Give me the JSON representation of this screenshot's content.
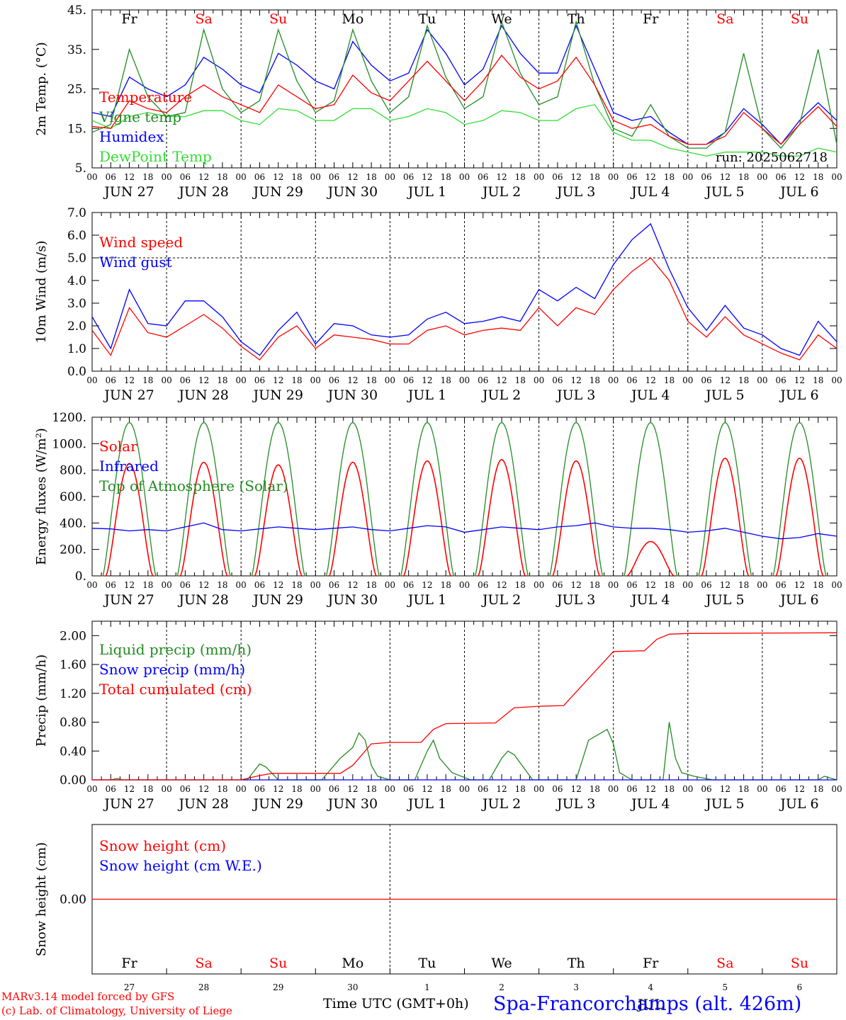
{
  "colors": {
    "red": "#ff0000",
    "darkgreen": "#228b22",
    "blue": "#0000ff",
    "lime": "#33dd33",
    "black": "#000000"
  },
  "day_labels": [
    "Fr",
    "Sa",
    "Su",
    "Mo",
    "Tu",
    "We",
    "Th",
    "Fr",
    "Sa",
    "Su"
  ],
  "weekend_days": [
    "Sa",
    "Su"
  ],
  "hour_ticks": [
    "00",
    "06",
    "12",
    "18"
  ],
  "final_hour_tick": "00",
  "date_labels": [
    "JUN 27",
    "JUN 28",
    "JUN 29",
    "JUN 30",
    "JUL  1",
    "JUL  2",
    "JUL  3",
    "JUL  4",
    "JUL  5",
    "JUL  6"
  ],
  "bottom_day_numbers": [
    "27",
    "28",
    "29",
    "30",
    "1",
    "2",
    "3",
    "4",
    "5",
    "6"
  ],
  "bottom_month": "JUL",
  "footer": {
    "model": "MARv3.14 model forced by GFS",
    "copyright": "(c) Lab. of Climatology, University of Liege",
    "time_axis": "Time UTC (GMT+0h)",
    "station": "Spa-Francorchamps (alt. 426m)"
  },
  "chart_data": [
    {
      "type": "line",
      "ylabel": "2m Temp. (°C)",
      "ylim": [
        5,
        45
      ],
      "ytick_labels": [
        "5.",
        "15.",
        "25.",
        "35.",
        "45."
      ],
      "run_label": "run: 2025062718",
      "legend": [
        "Temperature",
        "Vigne temp",
        "Humidex",
        "DewPoint Temp"
      ],
      "x_hours": [
        0,
        6,
        12,
        18,
        24,
        30,
        36,
        42,
        48,
        54,
        60,
        66,
        72,
        78,
        84,
        90,
        96,
        102,
        108,
        114,
        120,
        126,
        132,
        138,
        144,
        150,
        156,
        162,
        168,
        174,
        180,
        186,
        192,
        198,
        204,
        210,
        216,
        222,
        228,
        234,
        240
      ],
      "series": [
        {
          "name": "Temperature",
          "color": "red",
          "values": [
            15.5,
            15,
            22,
            20,
            19,
            23,
            26,
            23,
            21,
            19,
            26,
            23,
            20,
            21,
            28.5,
            24,
            22,
            27,
            32,
            27,
            22,
            27,
            33.5,
            28,
            25,
            27,
            33,
            26,
            17,
            15,
            16,
            13,
            11,
            11,
            13,
            19,
            15,
            11,
            16,
            20.5,
            15.5
          ]
        },
        {
          "name": "Vigne temp",
          "color": "darkgreen",
          "values": [
            14,
            16,
            35,
            23,
            18,
            19,
            40,
            25,
            19,
            22,
            40,
            27,
            19,
            22,
            40,
            27,
            19,
            23,
            41,
            28,
            20,
            23,
            42,
            29,
            21,
            23,
            42,
            26,
            15,
            13,
            21,
            13,
            10,
            10,
            14,
            34,
            15,
            10,
            16,
            35,
            11
          ]
        },
        {
          "name": "Humidex",
          "color": "blue",
          "values": [
            19,
            18,
            28,
            25,
            23,
            26,
            33,
            30,
            26,
            24,
            34,
            31,
            27,
            25,
            37,
            31,
            27,
            29,
            40,
            34,
            26,
            30,
            41,
            34,
            29,
            29,
            41,
            30,
            19,
            17,
            18,
            14,
            11,
            11,
            14,
            20,
            16,
            11,
            17,
            21.5,
            17
          ]
        },
        {
          "name": "DewPoint Temp",
          "color": "lime",
          "values": [
            17,
            15,
            18,
            19,
            18,
            18,
            19.5,
            19.5,
            17,
            16,
            20,
            19.5,
            17,
            17,
            20,
            20,
            17,
            18,
            20,
            19,
            16,
            17,
            19.5,
            19,
            17,
            17,
            20,
            21,
            14,
            12,
            12,
            10,
            9,
            8,
            9,
            9,
            9,
            8,
            8,
            10,
            9
          ]
        }
      ]
    },
    {
      "type": "line",
      "ylabel": "10m Wind (m/s)",
      "ylim": [
        0,
        7
      ],
      "ytick_labels": [
        "0.0",
        "1.0",
        "2.0",
        "3.0",
        "4.0",
        "5.0",
        "6.0",
        "7.0"
      ],
      "reference_line": 5.0,
      "legend": [
        "Wind speed",
        "Wind gust"
      ],
      "x_hours": [
        0,
        6,
        12,
        18,
        24,
        30,
        36,
        42,
        48,
        54,
        60,
        66,
        72,
        78,
        84,
        90,
        96,
        102,
        108,
        114,
        120,
        126,
        132,
        138,
        144,
        150,
        156,
        162,
        168,
        174,
        180,
        186,
        192,
        198,
        204,
        210,
        216,
        222,
        228,
        234,
        240
      ],
      "series": [
        {
          "name": "Wind speed",
          "color": "red",
          "values": [
            1.8,
            0.7,
            2.8,
            1.7,
            1.5,
            2.0,
            2.5,
            1.9,
            1.1,
            0.5,
            1.5,
            2.0,
            1.0,
            1.6,
            1.5,
            1.4,
            1.2,
            1.2,
            1.8,
            2.0,
            1.6,
            1.8,
            1.9,
            1.8,
            2.8,
            2.0,
            2.8,
            2.5,
            3.6,
            4.4,
            5.0,
            4.0,
            2.2,
            1.5,
            2.4,
            1.6,
            1.2,
            0.8,
            0.5,
            1.6,
            1.0
          ]
        },
        {
          "name": "Wind gust",
          "color": "blue",
          "values": [
            2.4,
            1.0,
            3.6,
            2.1,
            2.0,
            3.1,
            3.1,
            2.4,
            1.3,
            0.7,
            1.8,
            2.6,
            1.2,
            2.1,
            2.0,
            1.6,
            1.5,
            1.6,
            2.3,
            2.6,
            2.1,
            2.2,
            2.4,
            2.2,
            3.6,
            3.1,
            3.7,
            3.2,
            4.7,
            5.8,
            6.5,
            4.5,
            2.8,
            1.8,
            2.9,
            1.9,
            1.6,
            1.0,
            0.7,
            2.2,
            1.3
          ]
        }
      ]
    },
    {
      "type": "line",
      "ylabel": "Energy fluxes (W/m²)",
      "ylim": [
        0,
        1200
      ],
      "ytick_labels": [
        "0.",
        "200.",
        "400.",
        "600.",
        "800.",
        "1000.",
        "1200."
      ],
      "legend": [
        "Solar",
        "Infrared",
        "Top of Atmosphere (Solar)"
      ],
      "solar_daily_peaks": [
        850,
        860,
        840,
        860,
        870,
        880,
        870,
        260,
        890,
        890
      ],
      "toa_daily_peak": 1160,
      "series": [
        {
          "name": "Infrared",
          "color": "blue",
          "x_hours": [
            0,
            6,
            12,
            18,
            24,
            30,
            36,
            42,
            48,
            54,
            60,
            66,
            72,
            78,
            84,
            90,
            96,
            102,
            108,
            114,
            120,
            126,
            132,
            138,
            144,
            150,
            156,
            162,
            168,
            174,
            180,
            186,
            192,
            198,
            204,
            210,
            216,
            222,
            228,
            234,
            240
          ],
          "values": [
            360,
            355,
            340,
            350,
            340,
            370,
            400,
            350,
            340,
            355,
            370,
            360,
            350,
            360,
            370,
            350,
            340,
            360,
            380,
            370,
            330,
            350,
            370,
            360,
            350,
            370,
            380,
            400,
            370,
            360,
            360,
            350,
            330,
            340,
            360,
            330,
            300,
            280,
            290,
            320,
            300
          ]
        }
      ]
    },
    {
      "type": "line",
      "ylabel": "Precip (mm/h)",
      "ylim": [
        0,
        2.2
      ],
      "ytick_labels": [
        "0.00",
        "0.40",
        "0.80",
        "1.20",
        "1.60",
        "2.00"
      ],
      "legend": [
        "Liquid precip (mm/h)",
        "Snow precip (mm/h)",
        "Total cumulated (cm)"
      ],
      "series": [
        {
          "name": "Liquid precip (mm/h)",
          "color": "darkgreen",
          "x_hours": [
            0,
            6,
            8,
            10,
            12,
            14,
            20,
            40,
            50,
            54,
            56,
            60,
            66,
            74,
            80,
            84,
            86,
            88,
            90,
            92,
            96,
            104,
            108,
            110,
            112,
            116,
            122,
            128,
            132,
            134,
            136,
            142,
            150,
            156,
            160,
            164,
            166,
            168,
            170,
            174,
            184,
            186,
            188,
            190,
            194,
            200,
            210,
            228,
            234,
            236,
            240
          ],
          "values": [
            0,
            0,
            0.02,
            0,
            0,
            0,
            0,
            0,
            0,
            0.22,
            0.18,
            0,
            0,
            0,
            0.3,
            0.45,
            0.65,
            0.55,
            0.2,
            0.05,
            0,
            0,
            0.4,
            0.55,
            0.3,
            0.1,
            0,
            0,
            0.3,
            0.4,
            0.35,
            0,
            0,
            0,
            0.55,
            0.65,
            0.7,
            0.5,
            0.1,
            0,
            0,
            0.8,
            0.3,
            0.1,
            0.05,
            0,
            0,
            0,
            0,
            0.05,
            0
          ]
        },
        {
          "name": "Snow precip (mm/h)",
          "color": "blue",
          "x_hours": [
            0,
            240
          ],
          "values": [
            0,
            0
          ]
        },
        {
          "name": "Total cumulated (cm)",
          "color": "red",
          "x_hours": [
            0,
            48,
            54,
            58,
            80,
            84,
            90,
            96,
            106,
            110,
            114,
            130,
            136,
            144,
            152,
            162,
            168,
            178,
            182,
            186,
            192,
            240
          ],
          "values": [
            0,
            0,
            0.06,
            0.09,
            0.09,
            0.2,
            0.5,
            0.52,
            0.52,
            0.7,
            0.78,
            0.79,
            1.0,
            1.02,
            1.03,
            1.5,
            1.78,
            1.79,
            1.95,
            2.02,
            2.03,
            2.04
          ]
        }
      ]
    },
    {
      "type": "line",
      "ylabel": "Snow height (cm)",
      "ylim": [
        -1,
        1
      ],
      "ytick_labels": [
        "0.00"
      ],
      "legend": [
        "Snow height (cm)",
        "Snow height (cm W.E.)"
      ],
      "series": [
        {
          "name": "Snow height (cm)",
          "color": "red",
          "x_hours": [
            0,
            240
          ],
          "values": [
            0,
            0
          ]
        }
      ]
    }
  ]
}
